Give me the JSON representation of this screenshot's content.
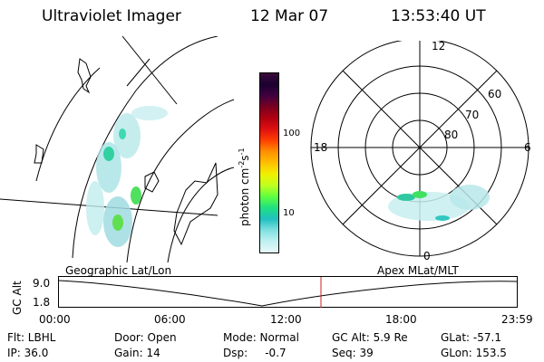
{
  "header": {
    "title": "Ultraviolet Imager",
    "date": "12 Mar 07",
    "time": "13:53:40 UT"
  },
  "colorbar": {
    "unit_label": "photon cm",
    "unit_sup1": "-2",
    "unit_mid": "s",
    "unit_sup2": "-1",
    "ticks": [
      "100",
      "10"
    ],
    "colors": [
      "#3a0a3a",
      "#1a0030",
      "#400040",
      "#7a0020",
      "#b00010",
      "#e01010",
      "#ff4000",
      "#ff9000",
      "#ffc000",
      "#f0f000",
      "#c0ff20",
      "#60ff40",
      "#20e080",
      "#20c0c0",
      "#80e0e0",
      "#c0f0f0",
      "#e8f8f8"
    ]
  },
  "geo_panel": {
    "label": "Geographic Lat/Lon"
  },
  "polar_panel": {
    "label": "Apex MLat/MLT",
    "mlt_labels": [
      "12",
      "18",
      "6",
      "0"
    ],
    "lat_labels": [
      "60",
      "70",
      "80"
    ]
  },
  "altitude_plot": {
    "ylabel": "GC Alt",
    "ymax": "9.0",
    "ymin": "1.8",
    "xticks": [
      "00:00",
      "06:00",
      "12:00",
      "18:00",
      "23:59"
    ],
    "cursor_color": "#cc2020"
  },
  "info": {
    "flt": "Flt: LBHL",
    "ip": "IP: 36.0",
    "door": "Door: Open",
    "gain": "Gain: 14",
    "mode": "Mode: Normal",
    "dsp": "Dsp:     -0.7",
    "gcalt": "GC Alt: 5.9 Re",
    "seq": "Seq: 39",
    "glat": "GLat: -57.1",
    "glon": "GLon: 153.5"
  }
}
